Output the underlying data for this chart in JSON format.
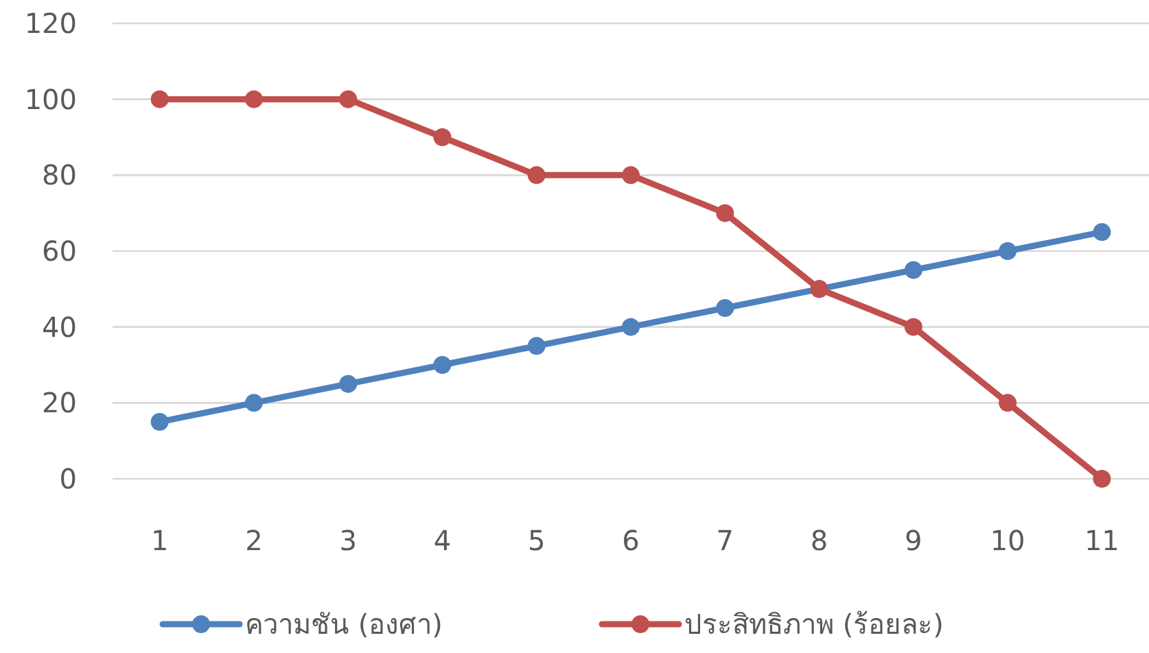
{
  "chart_data": {
    "type": "line",
    "categories": [
      "1",
      "2",
      "3",
      "4",
      "5",
      "6",
      "7",
      "8",
      "9",
      "10",
      "11"
    ],
    "series": [
      {
        "name": "ความชัน (องศา)",
        "color": "#4f81bd",
        "values": [
          15,
          20,
          25,
          30,
          35,
          40,
          45,
          50,
          55,
          60,
          65
        ]
      },
      {
        "name": "ประสิทธิภาพ (ร้อยละ)",
        "color": "#c0504d",
        "values": [
          100,
          100,
          100,
          90,
          80,
          80,
          70,
          50,
          40,
          20,
          0
        ]
      }
    ],
    "ylim": [
      0,
      120
    ],
    "yticks": [
      0,
      20,
      40,
      60,
      80,
      100,
      120
    ],
    "grid": "y",
    "legend": "bottom",
    "marker": "circle",
    "line_style": "solid"
  }
}
